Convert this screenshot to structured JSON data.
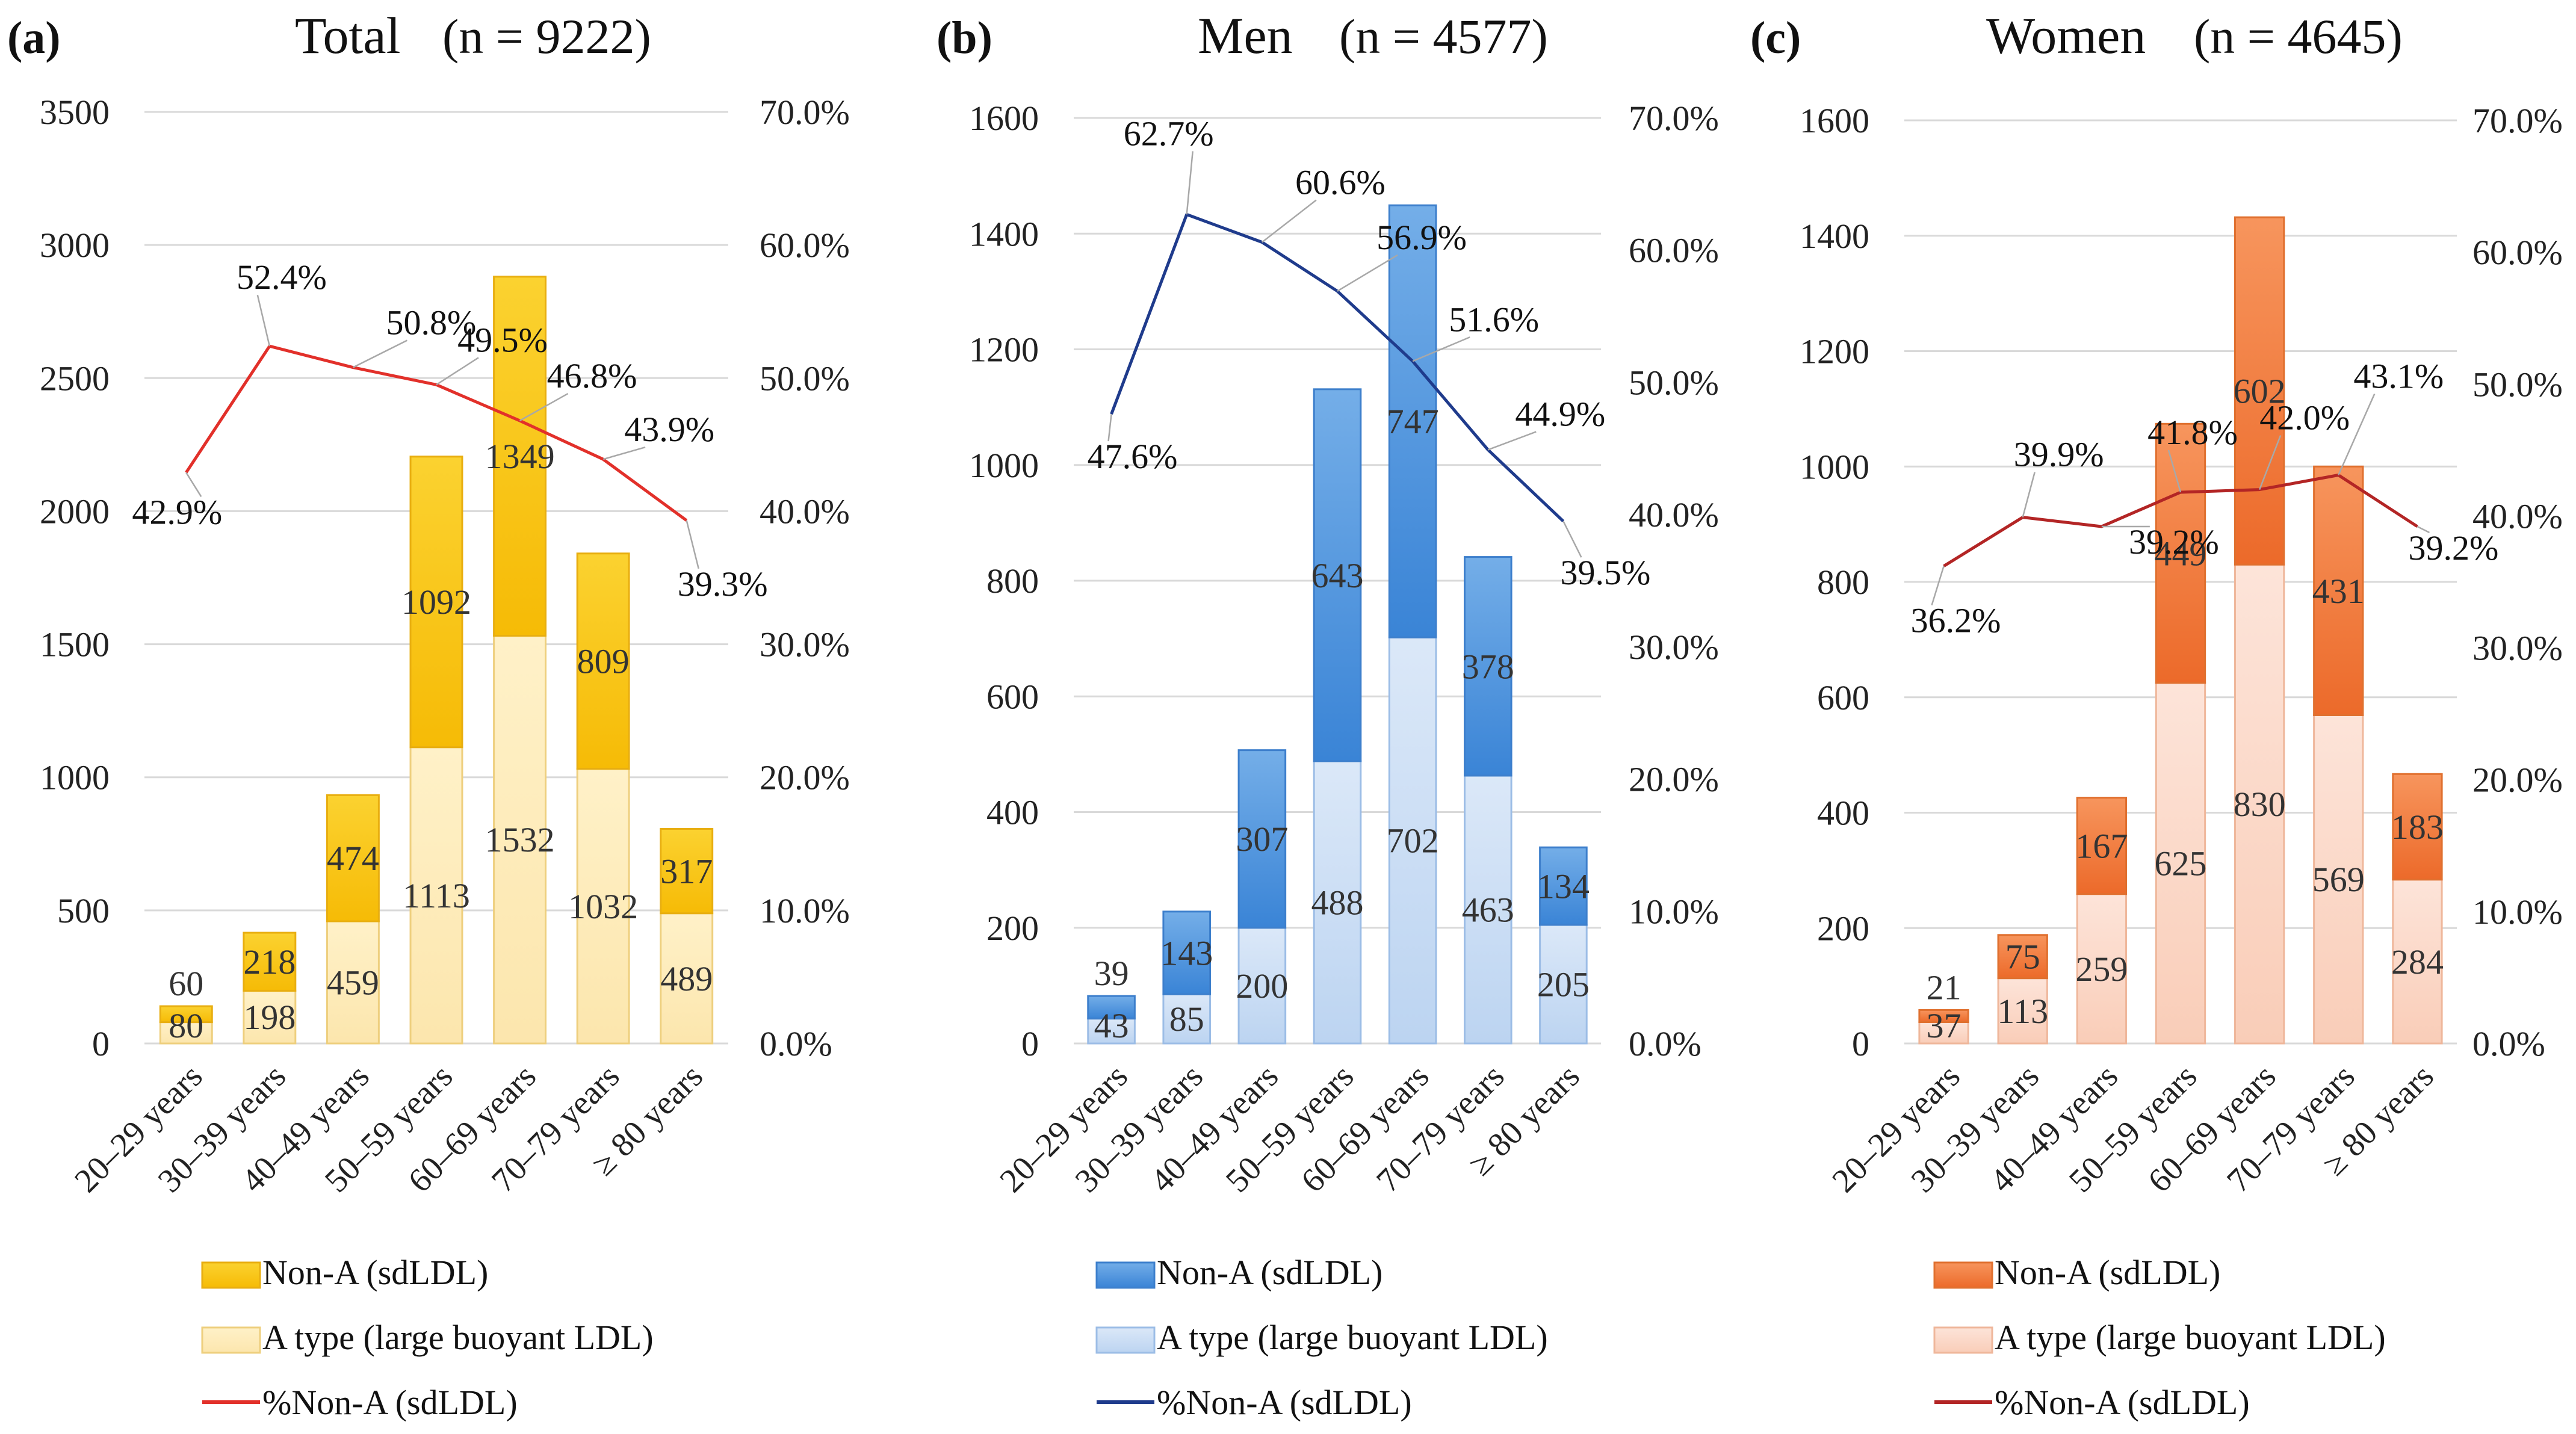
{
  "figure": {
    "legend_labels": {
      "non_a": "Non-A (sdLDL)",
      "a_type": "A type (large buoyant LDL)",
      "pct": "%Non-A (sdLDL)"
    }
  },
  "chart_data": [
    {
      "panel": "(a)",
      "title": "Total",
      "n_label": "(n = 9222)",
      "type": "bar",
      "stacked": true,
      "categories": [
        "20–29 years",
        "30–39 years",
        "40–49 years",
        "50–59 years",
        "60–69 years",
        "70–79 years",
        "≥ 80 years"
      ],
      "series": [
        {
          "name": "A type (large buoyant LDL)",
          "values": [
            80,
            198,
            459,
            1113,
            1532,
            1032,
            489
          ]
        },
        {
          "name": "Non-A (sdLDL)",
          "values": [
            60,
            218,
            474,
            1092,
            1349,
            809,
            317
          ]
        }
      ],
      "line_series": {
        "name": "%Non-A (sdLDL)",
        "values": [
          42.9,
          52.4,
          50.8,
          49.5,
          46.8,
          43.9,
          39.3
        ],
        "labels": [
          "42.9%",
          "52.4%",
          "50.8%",
          "49.5%",
          "46.8%",
          "43.9%",
          "39.3%"
        ]
      },
      "y_ticks": [
        0,
        500,
        1000,
        1500,
        2000,
        2500,
        3000,
        3500
      ],
      "y_tick_labels": [
        "0",
        "500",
        "1000",
        "1500",
        "2000",
        "2500",
        "3000",
        "3500"
      ],
      "ylim": [
        0,
        3500
      ],
      "y2_ticks": [
        0,
        10,
        20,
        30,
        40,
        50,
        60,
        70
      ],
      "y2_tick_labels": [
        "0.0%",
        "10.0%",
        "20.0%",
        "30.0%",
        "40.0%",
        "50.0%",
        "60.0%",
        "70.0%"
      ],
      "y2lim": [
        0,
        70
      ],
      "colors": {
        "non_a_top": "#fbd230",
        "non_a_bottom": "#f6bb06",
        "non_a_border": "#e8ae10",
        "a_top": "#fff1c8",
        "a_bottom": "#fce6ad",
        "a_border": "#eecf7e",
        "line": "#e2302a"
      }
    },
    {
      "panel": "(b)",
      "title": "Men",
      "n_label": "(n = 4577)",
      "type": "bar",
      "stacked": true,
      "categories": [
        "20–29 years",
        "30–39 years",
        "40–49 years",
        "50–59 years",
        "60–69 years",
        "70–79 years",
        "≥ 80 years"
      ],
      "series": [
        {
          "name": "A type (large buoyant LDL)",
          "values": [
            43,
            85,
            200,
            488,
            702,
            463,
            205
          ]
        },
        {
          "name": "Non-A (sdLDL)",
          "values": [
            39,
            143,
            307,
            643,
            747,
            378,
            134
          ]
        }
      ],
      "line_series": {
        "name": "%Non-A (sdLDL)",
        "values": [
          47.6,
          62.7,
          60.6,
          56.9,
          51.6,
          44.9,
          39.5
        ],
        "labels": [
          "47.6%",
          "62.7%",
          "60.6%",
          "56.9%",
          "51.6%",
          "44.9%",
          "39.5%"
        ]
      },
      "y_ticks": [
        0,
        200,
        400,
        600,
        800,
        1000,
        1200,
        1400,
        1600
      ],
      "y_tick_labels": [
        "0",
        "200",
        "400",
        "600",
        "800",
        "1000",
        "1200",
        "1400",
        "1600"
      ],
      "ylim": [
        0,
        1600
      ],
      "y2_ticks": [
        0,
        10,
        20,
        30,
        40,
        50,
        60,
        70
      ],
      "y2_tick_labels": [
        "0.0%",
        "10.0%",
        "20.0%",
        "30.0%",
        "40.0%",
        "50.0%",
        "60.0%",
        "70.0%"
      ],
      "y2lim": [
        0,
        70
      ],
      "colors": {
        "non_a_top": "#74aee8",
        "non_a_bottom": "#3a84d6",
        "non_a_border": "#3d7fcc",
        "a_top": "#dbe8f8",
        "a_bottom": "#bcd4f1",
        "a_border": "#9cbde6",
        "line": "#1f3b8c"
      }
    },
    {
      "panel": "(c)",
      "title": "Women",
      "n_label": "(n = 4645)",
      "type": "bar",
      "stacked": true,
      "categories": [
        "20–29 years",
        "30–39 years",
        "40–49 years",
        "50–59 years",
        "60–69 years",
        "70–79 years",
        "≥ 80 years"
      ],
      "series": [
        {
          "name": "A type (large buoyant LDL)",
          "values": [
            37,
            113,
            259,
            625,
            830,
            569,
            284
          ]
        },
        {
          "name": "Non-A (sdLDL)",
          "values": [
            21,
            75,
            167,
            449,
            602,
            431,
            183
          ]
        }
      ],
      "line_series": {
        "name": "%Non-A (sdLDL)",
        "values": [
          36.2,
          39.9,
          39.2,
          41.8,
          42.0,
          43.1,
          39.2
        ],
        "labels": [
          "36.2%",
          "39.9%",
          "39.2%",
          "41.8%",
          "42.0%",
          "43.1%",
          "39.2%"
        ]
      },
      "y_ticks": [
        0,
        200,
        400,
        600,
        800,
        1000,
        1200,
        1400,
        1600
      ],
      "y_tick_labels": [
        "0",
        "200",
        "400",
        "600",
        "800",
        "1000",
        "1200",
        "1400",
        "1600"
      ],
      "ylim": [
        0,
        1600
      ],
      "y2_ticks": [
        0,
        10,
        20,
        30,
        40,
        50,
        60,
        70
      ],
      "y2_tick_labels": [
        "0.0%",
        "10.0%",
        "20.0%",
        "30.0%",
        "40.0%",
        "50.0%",
        "60.0%",
        "70.0%"
      ],
      "y2lim": [
        0,
        70
      ],
      "colors": {
        "non_a_top": "#f7955d",
        "non_a_bottom": "#ec6a2a",
        "non_a_border": "#e0702f",
        "a_top": "#fde4d9",
        "a_bottom": "#f9cdb8",
        "a_border": "#efb79b",
        "line": "#b32525"
      }
    }
  ]
}
